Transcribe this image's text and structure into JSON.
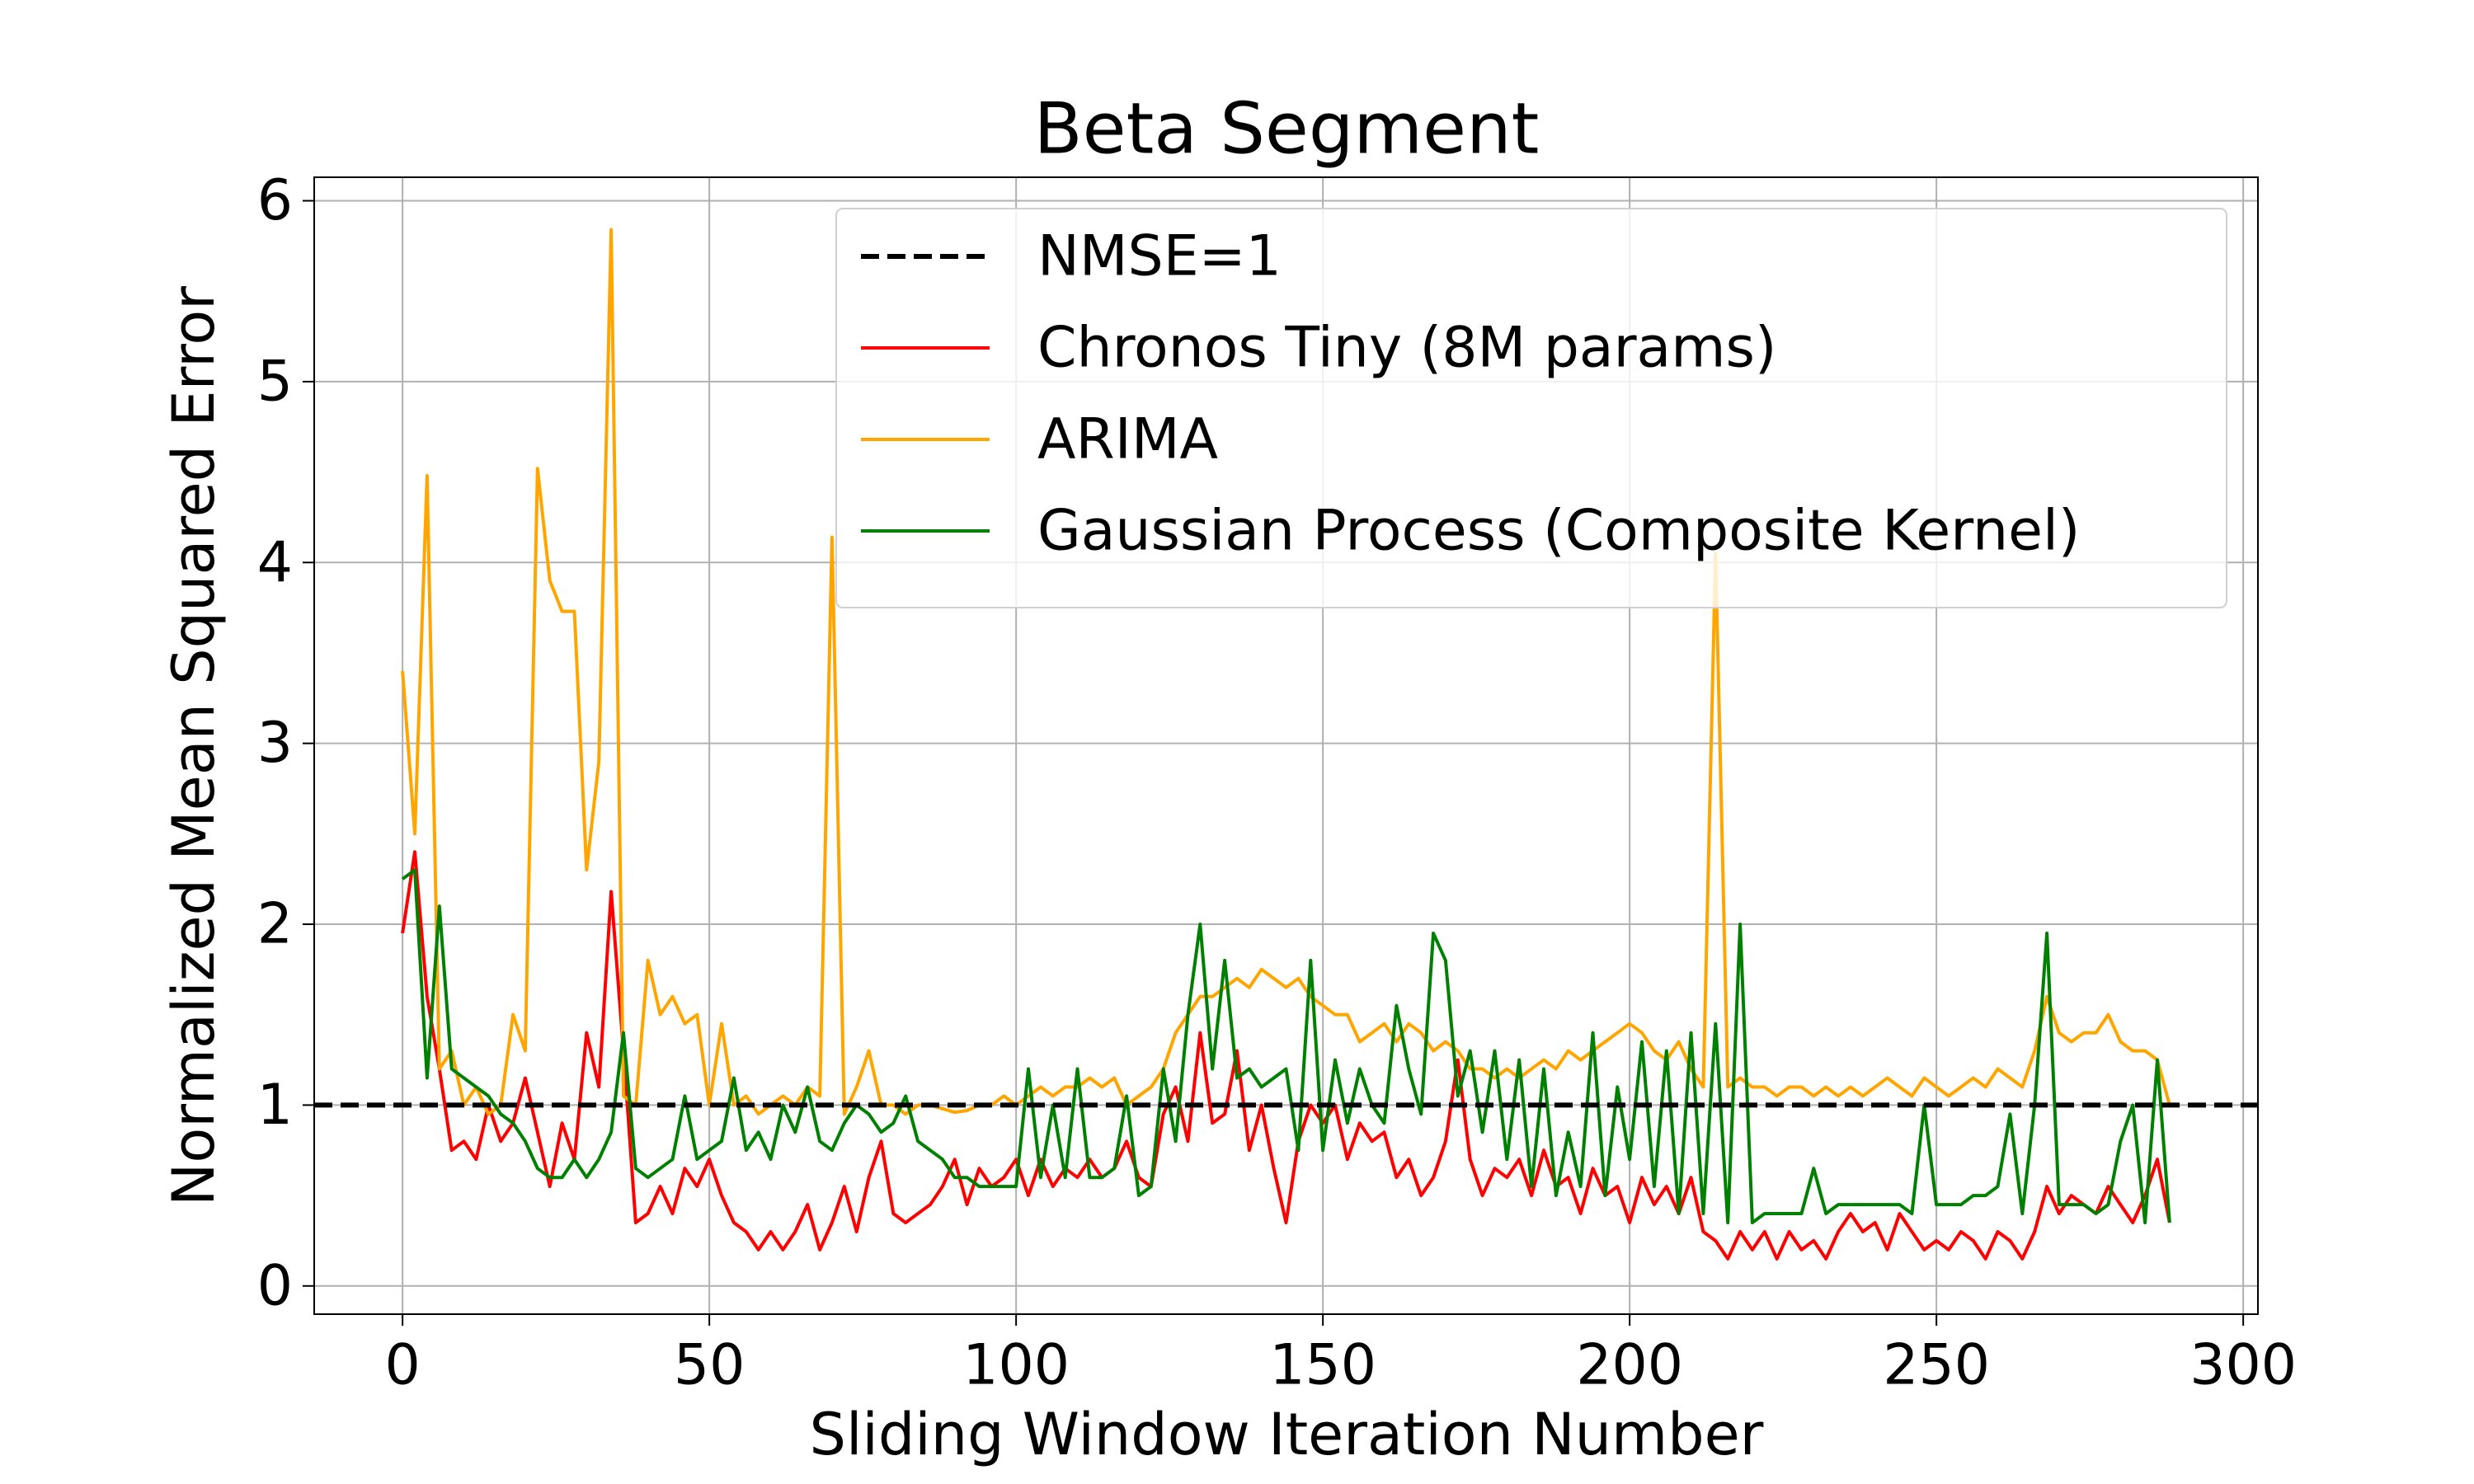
{
  "chart_data": {
    "type": "line",
    "title": "Beta Segment",
    "x_label": "Sliding Window Iteration Number",
    "y_label": "Normalized Mean Squared Error",
    "xlim": [
      -14.4,
      302.4
    ],
    "ylim": [
      -0.156,
      6.13
    ],
    "xticks": [
      0,
      50,
      100,
      150,
      200,
      250,
      300
    ],
    "yticks": [
      0,
      1,
      2,
      3,
      4,
      5,
      6
    ],
    "grid": true,
    "legend": "upper right",
    "reference_line": {
      "name": "NMSE=1",
      "value": 1,
      "color": "#000000",
      "style": "dashed"
    },
    "x": [
      0,
      2,
      4,
      6,
      8,
      10,
      12,
      14,
      16,
      18,
      20,
      22,
      24,
      26,
      28,
      30,
      32,
      34,
      36,
      38,
      40,
      42,
      44,
      46,
      48,
      50,
      52,
      54,
      56,
      58,
      60,
      62,
      64,
      66,
      68,
      70,
      72,
      74,
      76,
      78,
      80,
      82,
      84,
      86,
      88,
      90,
      92,
      94,
      96,
      98,
      100,
      102,
      104,
      106,
      108,
      110,
      112,
      114,
      116,
      118,
      120,
      122,
      124,
      126,
      128,
      130,
      132,
      134,
      136,
      138,
      140,
      142,
      144,
      146,
      148,
      150,
      152,
      154,
      156,
      158,
      160,
      162,
      164,
      166,
      168,
      170,
      172,
      174,
      176,
      178,
      180,
      182,
      184,
      186,
      188,
      190,
      192,
      194,
      196,
      198,
      200,
      202,
      204,
      206,
      208,
      210,
      212,
      214,
      216,
      218,
      220,
      222,
      224,
      226,
      228,
      230,
      232,
      234,
      236,
      238,
      240,
      242,
      244,
      246,
      248,
      250,
      252,
      254,
      256,
      258,
      260,
      262,
      264,
      266,
      268,
      270,
      272,
      274,
      276,
      278,
      280,
      282,
      284,
      286,
      288
    ],
    "series": [
      {
        "name": "Chronos Tiny (8M params)",
        "color": "#ff0000",
        "values": [
          1.95,
          2.4,
          1.6,
          1.2,
          0.75,
          0.8,
          0.7,
          1.0,
          0.8,
          0.9,
          1.15,
          0.85,
          0.55,
          0.9,
          0.7,
          1.4,
          1.1,
          2.18,
          1.3,
          0.35,
          0.4,
          0.55,
          0.4,
          0.65,
          0.55,
          0.7,
          0.5,
          0.35,
          0.3,
          0.2,
          0.3,
          0.2,
          0.3,
          0.45,
          0.2,
          0.35,
          0.55,
          0.3,
          0.6,
          0.8,
          0.4,
          0.35,
          0.4,
          0.45,
          0.55,
          0.7,
          0.45,
          0.65,
          0.55,
          0.6,
          0.7,
          0.5,
          0.7,
          0.55,
          0.65,
          0.6,
          0.7,
          0.6,
          0.65,
          0.8,
          0.6,
          0.55,
          0.95,
          1.1,
          0.8,
          1.4,
          0.9,
          0.95,
          1.3,
          0.75,
          1.0,
          0.65,
          0.35,
          0.8,
          1.0,
          0.9,
          1.0,
          0.7,
          0.9,
          0.8,
          0.85,
          0.6,
          0.7,
          0.5,
          0.6,
          0.8,
          1.25,
          0.7,
          0.5,
          0.65,
          0.6,
          0.7,
          0.5,
          0.75,
          0.55,
          0.6,
          0.4,
          0.65,
          0.5,
          0.55,
          0.35,
          0.6,
          0.45,
          0.55,
          0.4,
          0.6,
          0.3,
          0.25,
          0.15,
          0.3,
          0.2,
          0.3,
          0.15,
          0.3,
          0.2,
          0.25,
          0.15,
          0.3,
          0.4,
          0.3,
          0.35,
          0.2,
          0.4,
          0.3,
          0.2,
          0.25,
          0.2,
          0.3,
          0.25,
          0.15,
          0.3,
          0.25,
          0.15,
          0.3,
          0.55,
          0.4,
          0.5,
          0.45,
          0.4,
          0.55,
          0.45,
          0.35,
          0.5,
          0.7,
          0.35
        ]
      },
      {
        "name": "ARIMA",
        "color": "#ffa500",
        "values": [
          3.4,
          2.5,
          4.48,
          1.2,
          1.3,
          1.0,
          1.1,
          0.95,
          1.0,
          1.5,
          1.3,
          4.52,
          3.9,
          3.73,
          3.73,
          2.3,
          2.9,
          5.84,
          1.05,
          1.0,
          1.8,
          1.5,
          1.6,
          1.45,
          1.5,
          1.0,
          1.45,
          1.0,
          1.05,
          0.95,
          1.0,
          1.05,
          1.0,
          1.1,
          1.05,
          4.14,
          0.95,
          1.1,
          1.3,
          1.0,
          1.0,
          0.95,
          1.0,
          1.0,
          0.98,
          0.96,
          0.97,
          1.0,
          1.0,
          1.05,
          1.0,
          1.05,
          1.1,
          1.05,
          1.1,
          1.1,
          1.15,
          1.1,
          1.15,
          1.0,
          1.05,
          1.1,
          1.2,
          1.4,
          1.5,
          1.6,
          1.6,
          1.65,
          1.7,
          1.65,
          1.75,
          1.7,
          1.65,
          1.7,
          1.6,
          1.55,
          1.5,
          1.5,
          1.35,
          1.4,
          1.45,
          1.35,
          1.45,
          1.4,
          1.3,
          1.35,
          1.3,
          1.2,
          1.2,
          1.15,
          1.2,
          1.15,
          1.2,
          1.25,
          1.2,
          1.3,
          1.25,
          1.3,
          1.35,
          1.4,
          1.45,
          1.4,
          1.3,
          1.25,
          1.35,
          1.2,
          1.1,
          4.05,
          1.1,
          1.15,
          1.1,
          1.1,
          1.05,
          1.1,
          1.1,
          1.05,
          1.1,
          1.05,
          1.1,
          1.05,
          1.1,
          1.15,
          1.1,
          1.05,
          1.15,
          1.1,
          1.05,
          1.1,
          1.15,
          1.1,
          1.2,
          1.15,
          1.1,
          1.3,
          1.6,
          1.4,
          1.35,
          1.4,
          1.4,
          1.5,
          1.35,
          1.3,
          1.3,
          1.25,
          1.0
        ]
      },
      {
        "name": "Gaussian Process (Composite Kernel)",
        "color": "#008000",
        "values": [
          2.25,
          2.3,
          1.15,
          2.1,
          1.2,
          1.15,
          1.1,
          1.05,
          0.95,
          0.9,
          0.8,
          0.65,
          0.6,
          0.6,
          0.7,
          0.6,
          0.7,
          0.85,
          1.4,
          0.65,
          0.6,
          0.65,
          0.7,
          1.05,
          0.7,
          0.75,
          0.8,
          1.15,
          0.75,
          0.85,
          0.7,
          1.0,
          0.85,
          1.1,
          0.8,
          0.75,
          0.9,
          1.0,
          0.95,
          0.85,
          0.9,
          1.05,
          0.8,
          0.75,
          0.7,
          0.6,
          0.6,
          0.55,
          0.55,
          0.55,
          0.55,
          1.2,
          0.6,
          1.0,
          0.6,
          1.2,
          0.6,
          0.6,
          0.65,
          1.05,
          0.5,
          0.55,
          1.2,
          0.8,
          1.5,
          2.0,
          1.2,
          1.8,
          1.15,
          1.2,
          1.1,
          1.15,
          1.2,
          0.75,
          1.8,
          0.75,
          1.25,
          0.9,
          1.2,
          1.0,
          0.9,
          1.55,
          1.2,
          0.95,
          1.95,
          1.8,
          1.05,
          1.3,
          0.85,
          1.3,
          0.7,
          1.25,
          0.55,
          1.2,
          0.5,
          0.85,
          0.55,
          1.4,
          0.5,
          1.1,
          0.7,
          1.35,
          0.55,
          1.3,
          0.4,
          1.4,
          0.4,
          1.45,
          0.35,
          2.0,
          0.35,
          0.4,
          0.4,
          0.4,
          0.4,
          0.65,
          0.4,
          0.45,
          0.45,
          0.45,
          0.45,
          0.45,
          0.45,
          0.4,
          1.0,
          0.45,
          0.45,
          0.45,
          0.5,
          0.5,
          0.55,
          0.95,
          0.4,
          1.0,
          1.95,
          0.45,
          0.45,
          0.45,
          0.4,
          0.45,
          0.8,
          1.0,
          0.35,
          1.25,
          0.35
        ]
      }
    ]
  }
}
